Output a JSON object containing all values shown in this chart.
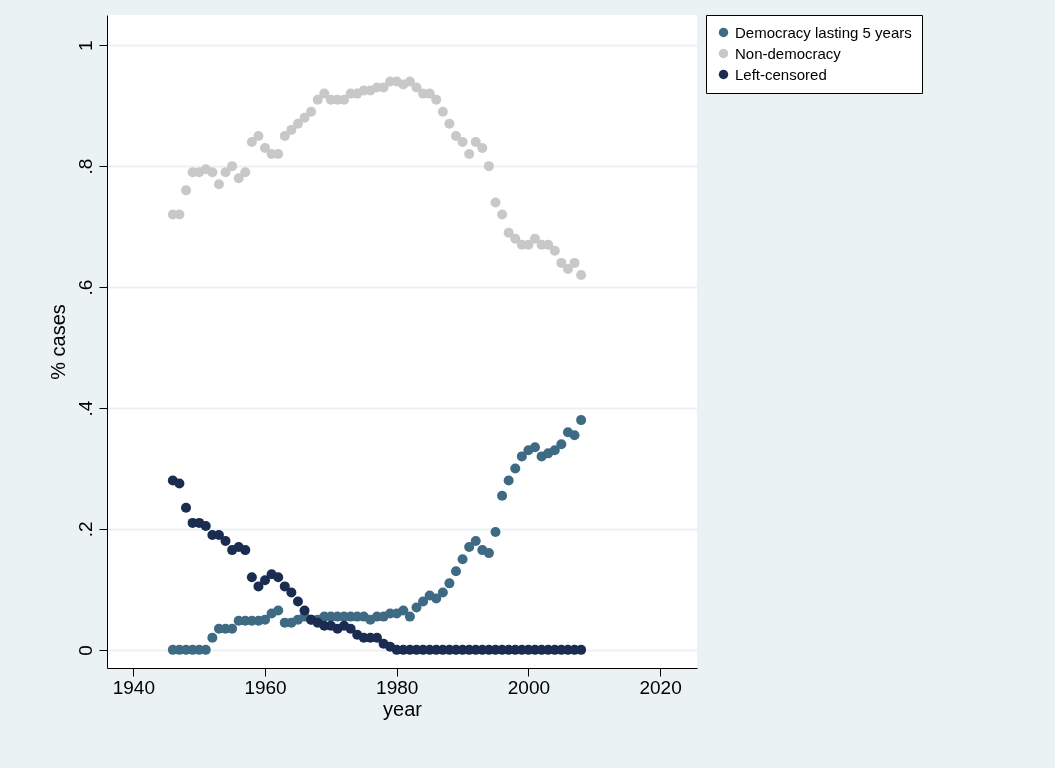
{
  "chart_data": {
    "type": "scatter",
    "xlabel": "year",
    "ylabel": "% cases",
    "x": [
      1946,
      1947,
      1948,
      1949,
      1950,
      1951,
      1952,
      1953,
      1954,
      1955,
      1956,
      1957,
      1958,
      1959,
      1960,
      1961,
      1962,
      1963,
      1964,
      1965,
      1966,
      1967,
      1968,
      1969,
      1970,
      1971,
      1972,
      1973,
      1974,
      1975,
      1976,
      1977,
      1978,
      1979,
      1980,
      1981,
      1982,
      1983,
      1984,
      1985,
      1986,
      1987,
      1988,
      1989,
      1990,
      1991,
      1992,
      1993,
      1994,
      1995,
      1996,
      1997,
      1998,
      1999,
      2000,
      2001,
      2002,
      2003,
      2004,
      2005,
      2006,
      2007,
      2008
    ],
    "series": [
      {
        "name": "Democracy lasting 5 years",
        "color": "#3e6a84",
        "values": [
          0,
          0,
          0,
          0,
          0,
          0,
          0.02,
          0.035,
          0.035,
          0.035,
          0.048,
          0.048,
          0.048,
          0.048,
          0.05,
          0.06,
          0.065,
          0.045,
          0.045,
          0.05,
          0.055,
          0.05,
          0.05,
          0.055,
          0.055,
          0.055,
          0.055,
          0.055,
          0.055,
          0.055,
          0.05,
          0.055,
          0.055,
          0.06,
          0.06,
          0.065,
          0.055,
          0.07,
          0.08,
          0.09,
          0.085,
          0.095,
          0.11,
          0.13,
          0.15,
          0.17,
          0.18,
          0.165,
          0.16,
          0.195,
          0.255,
          0.28,
          0.3,
          0.32,
          0.33,
          0.335,
          0.32,
          0.325,
          0.33,
          0.34,
          0.36,
          0.355,
          0.38
        ]
      },
      {
        "name": "Non-democracy",
        "color": "#c8c8c8",
        "values": [
          0.72,
          0.72,
          0.76,
          0.79,
          0.79,
          0.795,
          0.79,
          0.77,
          0.79,
          0.8,
          0.78,
          0.79,
          0.84,
          0.85,
          0.83,
          0.82,
          0.82,
          0.85,
          0.86,
          0.87,
          0.88,
          0.89,
          0.91,
          0.92,
          0.91,
          0.91,
          0.91,
          0.92,
          0.92,
          0.925,
          0.925,
          0.93,
          0.93,
          0.94,
          0.94,
          0.935,
          0.94,
          0.93,
          0.92,
          0.92,
          0.91,
          0.89,
          0.87,
          0.85,
          0.84,
          0.82,
          0.84,
          0.83,
          0.8,
          0.74,
          0.72,
          0.69,
          0.68,
          0.67,
          0.67,
          0.68,
          0.67,
          0.67,
          0.66,
          0.64,
          0.63,
          0.64,
          0.62
        ]
      },
      {
        "name": "Left-censored",
        "color": "#1a2c50",
        "values": [
          0.28,
          0.275,
          0.235,
          0.21,
          0.21,
          0.205,
          0.19,
          0.19,
          0.18,
          0.165,
          0.17,
          0.165,
          0.12,
          0.105,
          0.115,
          0.125,
          0.12,
          0.105,
          0.095,
          0.08,
          0.065,
          0.05,
          0.045,
          0.04,
          0.04,
          0.035,
          0.04,
          0.035,
          0.025,
          0.02,
          0.02,
          0.02,
          0.01,
          0.005,
          0,
          0,
          0,
          0,
          0,
          0,
          0,
          0,
          0,
          0,
          0,
          0,
          0,
          0,
          0,
          0,
          0,
          0,
          0,
          0,
          0,
          0,
          0,
          0,
          0,
          0,
          0,
          0,
          0
        ]
      }
    ],
    "xlim": [
      1936,
      2025.6
    ],
    "xticks": [
      1940,
      1960,
      1980,
      2000,
      2020
    ],
    "ylim": [
      -0.03,
      1.05
    ],
    "yticks": [
      0,
      {
        "value": 0.2,
        "label": ".2"
      },
      {
        "value": 0.4,
        "label": ".4"
      },
      {
        "value": 0.6,
        "label": ".6"
      },
      {
        "value": 0.8,
        "label": ".8"
      },
      1
    ],
    "grid": "y",
    "legend": "top right",
    "marker": "circle"
  }
}
